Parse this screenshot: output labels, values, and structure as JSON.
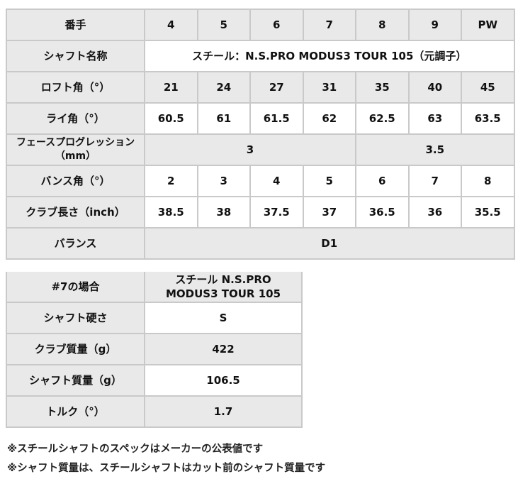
{
  "table": {
    "header": {
      "label": "番手",
      "cols": [
        "4",
        "5",
        "6",
        "7",
        "8",
        "9",
        "PW"
      ]
    },
    "shaft_name": {
      "label": "シャフト名称",
      "value": "スチール：N.S.PRO MODUS3 TOUR 105（元調子）"
    },
    "loft": {
      "label": "ロフト角（°）",
      "values": [
        "21",
        "24",
        "27",
        "31",
        "35",
        "40",
        "45"
      ]
    },
    "lie": {
      "label": "ライ角（°）",
      "values": [
        "60.5",
        "61",
        "61.5",
        "62",
        "62.5",
        "63",
        "63.5"
      ]
    },
    "face_progression": {
      "label": "フェースプログレッション（mm）",
      "values": [
        "3",
        "3.5"
      ]
    },
    "bounce": {
      "label": "バンス角（°）",
      "values": [
        "2",
        "3",
        "4",
        "5",
        "6",
        "7",
        "8"
      ]
    },
    "length": {
      "label": "クラブ長さ（inch）",
      "values": [
        "38.5",
        "38",
        "37.5",
        "37",
        "36.5",
        "36",
        "35.5"
      ]
    },
    "balance": {
      "label": "バランス",
      "value": "D1"
    }
  },
  "table7": {
    "case": {
      "label": "#7の場合",
      "value": "スチール N.S.PRO MODUS3 TOUR 105"
    },
    "flex": {
      "label": "シャフト硬さ",
      "value": "S"
    },
    "club_weight": {
      "label": "クラブ質量（g）",
      "value": "422"
    },
    "shaft_weight": {
      "label": "シャフト質量（g）",
      "value": "106.5"
    },
    "torque": {
      "label": "トルク（°）",
      "value": "1.7"
    }
  },
  "notes": [
    "※スチールシャフトのスペックはメーカーの公表値です",
    "※シャフト質量は、スチールシャフトはカット前のシャフト質量です"
  ]
}
